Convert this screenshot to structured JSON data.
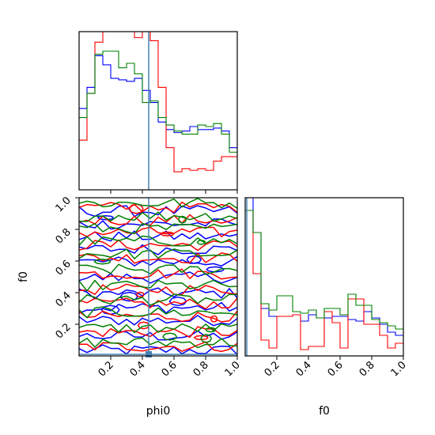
{
  "chart_data": [
    {
      "type": "histogram",
      "panel": "phi0 marginal",
      "xlim": [
        0,
        1
      ],
      "y_ticks_shown": false,
      "x_tick_labels_shown": false,
      "truth_line_x": 0.44,
      "bins": [
        0.0,
        0.05,
        0.1,
        0.15,
        0.2,
        0.25,
        0.3,
        0.35,
        0.4,
        0.45,
        0.5,
        0.55,
        0.6,
        0.65,
        0.7,
        0.75,
        0.8,
        0.85,
        0.9,
        0.95,
        1.0
      ],
      "series": [
        {
          "color": "#0000ff",
          "density": [
            0.54,
            0.68,
            0.89,
            0.83,
            0.74,
            0.73,
            0.72,
            0.74,
            0.66,
            0.58,
            0.45,
            0.4,
            0.38,
            0.39,
            0.42,
            0.4,
            0.4,
            0.41,
            0.39,
            0.28
          ]
        },
        {
          "color": "#ff0000",
          "density": [
            0.33,
            0.64,
            0.98,
            1.05,
            1.05,
            1.05,
            1.05,
            1.01,
            1.07,
            0.99,
            0.68,
            0.28,
            0.12,
            0.14,
            0.13,
            0.14,
            0.13,
            0.19,
            0.22,
            0.22
          ]
        },
        {
          "color": "#008000",
          "density": [
            0.48,
            0.64,
            0.9,
            0.92,
            0.92,
            0.81,
            0.84,
            0.77,
            0.58,
            0.59,
            0.48,
            0.43,
            0.39,
            0.37,
            0.37,
            0.43,
            0.42,
            0.44,
            0.37,
            0.25
          ]
        }
      ]
    },
    {
      "type": "contour",
      "panel": "phi0 vs f0 2D",
      "xlabel": "phi0",
      "ylabel": "f0",
      "xlim": [
        0,
        1
      ],
      "ylim": [
        0,
        1
      ],
      "xticks": [
        "0.2",
        "0.4",
        "0.6",
        "0.8",
        "1.0"
      ],
      "yticks": [
        "0.2",
        "0.4",
        "0.6",
        "0.8",
        "1.0"
      ],
      "truth_line_x": 0.44,
      "truth_line_y": 0.01,
      "truth_point": [
        0.44,
        0.01
      ],
      "series_colors": [
        "#0000ff",
        "#ff0000",
        "#008000"
      ]
    },
    {
      "type": "histogram",
      "panel": "f0 marginal",
      "xlabel": "f0",
      "xlim": [
        0,
        1
      ],
      "xticks": [
        "0.2",
        "0.4",
        "0.6",
        "0.8",
        "1.0"
      ],
      "truth_line_x": 0.01,
      "bins": [
        0.0,
        0.05,
        0.1,
        0.15,
        0.2,
        0.25,
        0.3,
        0.35,
        0.4,
        0.45,
        0.5,
        0.55,
        0.6,
        0.65,
        0.7,
        0.75,
        0.8,
        0.85,
        0.9,
        0.95,
        1.0
      ],
      "series": [
        {
          "color": "#0000ff",
          "density": [
            1.0,
            0.78,
            0.3,
            0.25,
            0.25,
            0.25,
            0.26,
            0.22,
            0.26,
            0.24,
            0.24,
            0.25,
            0.25,
            0.23,
            0.22,
            0.28,
            0.24,
            0.2,
            0.15,
            0.13
          ]
        },
        {
          "color": "#ff0000",
          "density": [
            0.92,
            0.52,
            0.1,
            0.05,
            0.25,
            0.25,
            0.26,
            0.04,
            0.06,
            0.06,
            0.28,
            0.21,
            0.05,
            0.36,
            0.36,
            0.2,
            0.2,
            0.13,
            0.05,
            0.08
          ]
        },
        {
          "color": "#008000",
          "density": [
            0.92,
            0.78,
            0.33,
            0.29,
            0.38,
            0.38,
            0.28,
            0.27,
            0.29,
            0.24,
            0.3,
            0.3,
            0.26,
            0.39,
            0.32,
            0.32,
            0.23,
            0.21,
            0.19,
            0.17
          ]
        }
      ]
    }
  ]
}
